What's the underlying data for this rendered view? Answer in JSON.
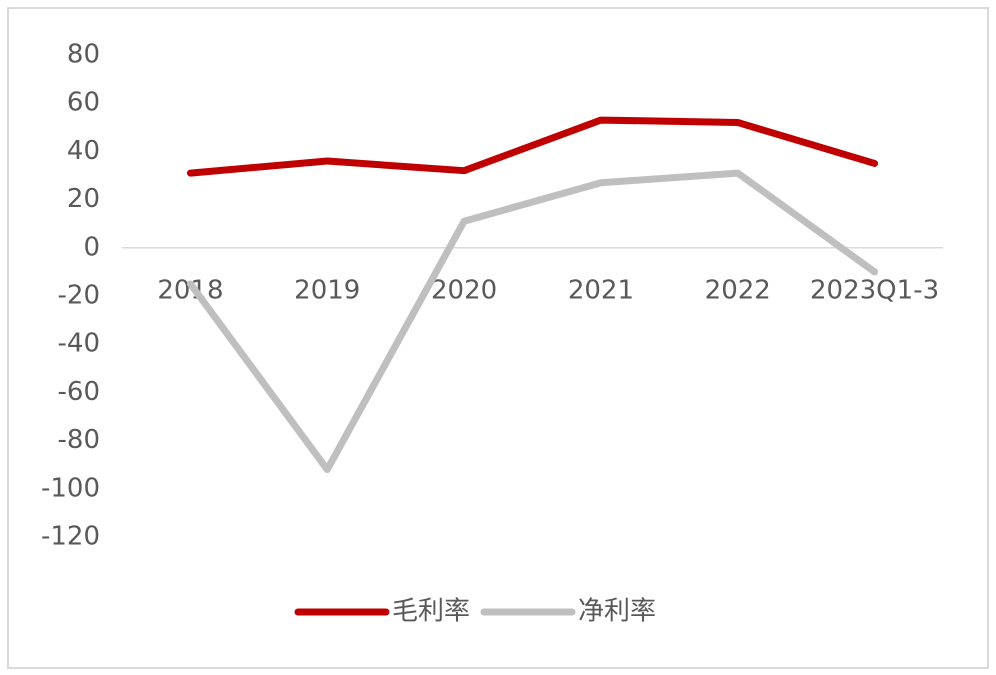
{
  "chart_data": {
    "type": "line",
    "categories": [
      "2018",
      "2019",
      "2020",
      "2021",
      "2022",
      "2023Q1-3"
    ],
    "series": [
      {
        "name": "毛利率",
        "color": "#c00000",
        "values": [
          31,
          36,
          32,
          53,
          52,
          35
        ]
      },
      {
        "name": "净利率",
        "color": "#bfbfbf",
        "values": [
          -15,
          -92,
          11,
          27,
          31,
          -10
        ]
      }
    ],
    "ylim": [
      -120,
      80
    ],
    "yticks": [
      -120,
      -100,
      -80,
      -60,
      -40,
      -20,
      0,
      20,
      40,
      60,
      80
    ],
    "grid": false,
    "legend": "bottom"
  }
}
